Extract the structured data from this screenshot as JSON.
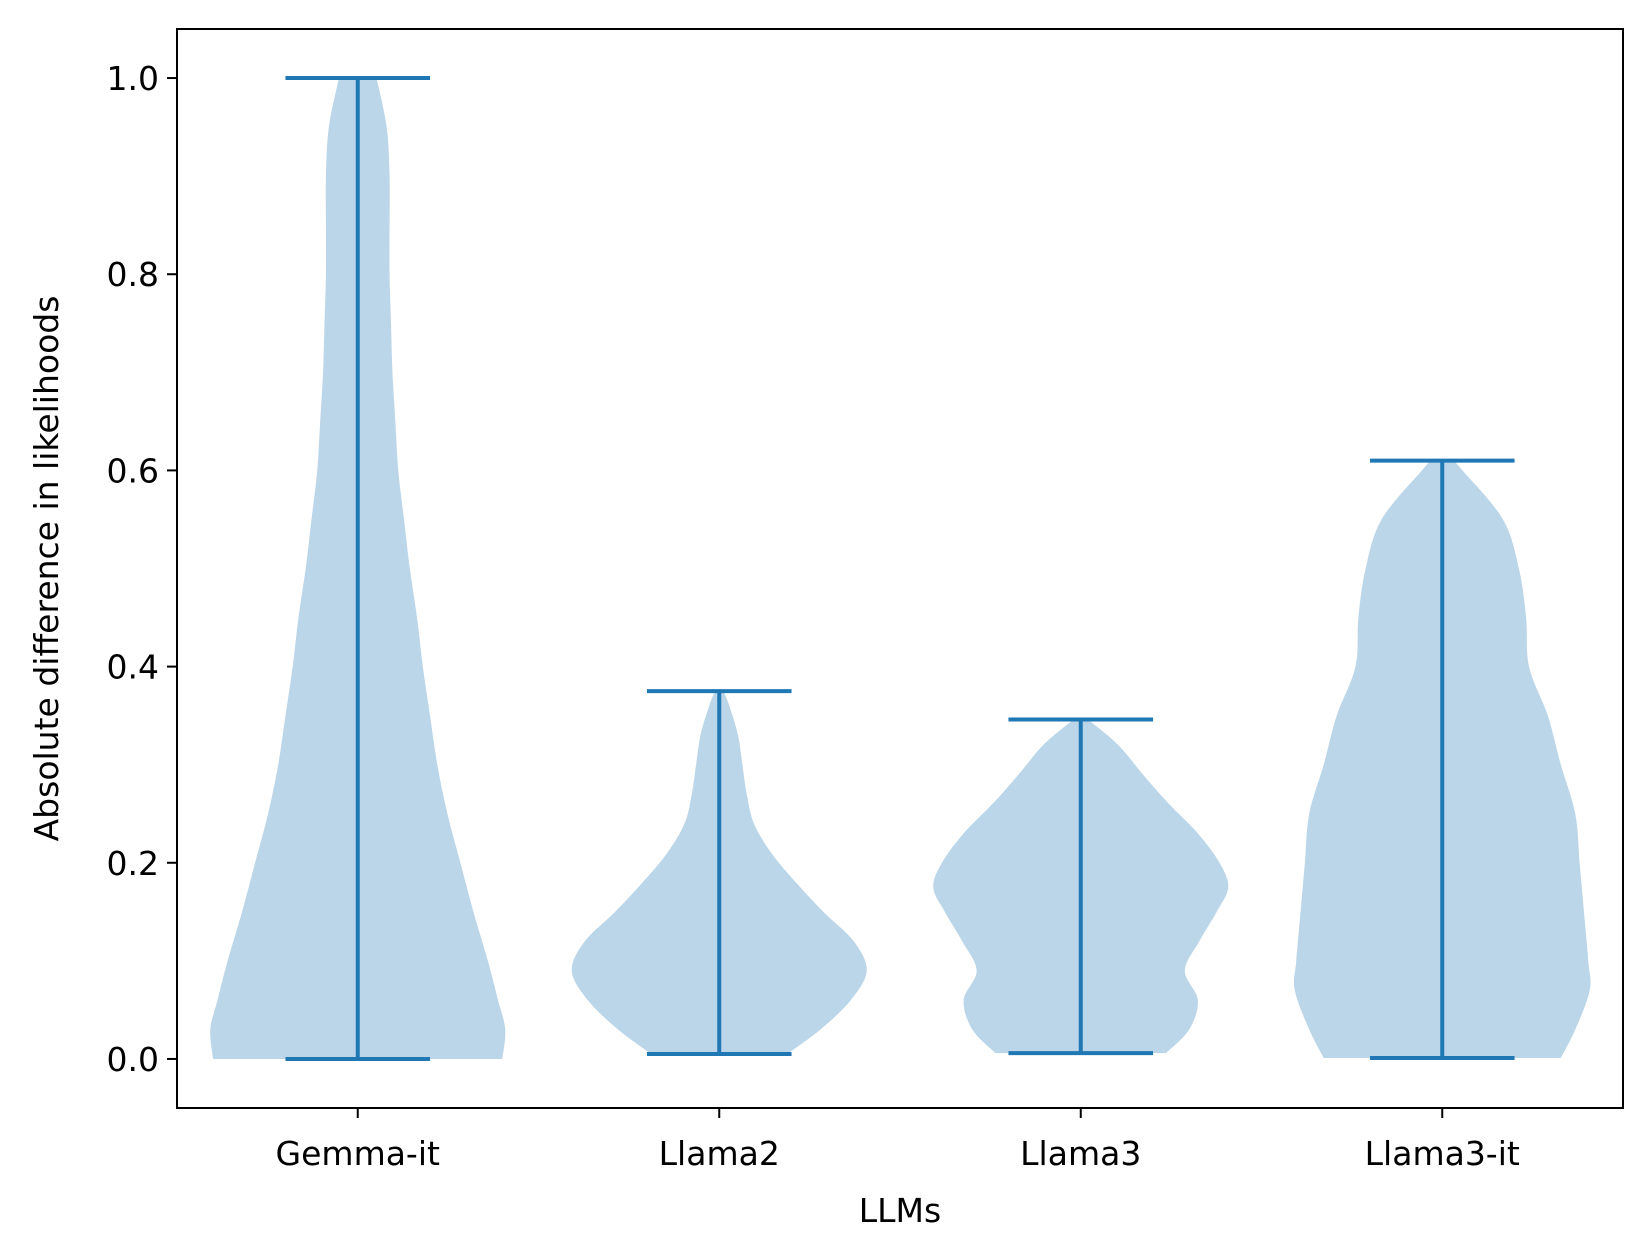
{
  "chart_data": {
    "type": "violin",
    "xlabel": "LLMs",
    "ylabel": "Absolute difference in likelihoods",
    "ylim": [
      -0.05,
      1.05
    ],
    "yticks": [
      "0.0",
      "0.2",
      "0.4",
      "0.6",
      "0.8",
      "1.0"
    ],
    "grid": false,
    "colors": {
      "body": "#bcd6e9",
      "lines": "#1f77b4"
    },
    "categories": [
      "Gemma-it",
      "Llama2",
      "Llama3",
      "Llama3-it"
    ],
    "series": [
      {
        "category": "Gemma-it",
        "min": 0.0,
        "max": 1.0,
        "density": [
          [
            0.0,
            1.0
          ],
          [
            0.03,
            1.02
          ],
          [
            0.06,
            0.97
          ],
          [
            0.1,
            0.9
          ],
          [
            0.15,
            0.8
          ],
          [
            0.2,
            0.71
          ],
          [
            0.25,
            0.62
          ],
          [
            0.3,
            0.55
          ],
          [
            0.35,
            0.5
          ],
          [
            0.4,
            0.45
          ],
          [
            0.45,
            0.41
          ],
          [
            0.5,
            0.36
          ],
          [
            0.55,
            0.32
          ],
          [
            0.6,
            0.28
          ],
          [
            0.65,
            0.26
          ],
          [
            0.7,
            0.24
          ],
          [
            0.75,
            0.23
          ],
          [
            0.8,
            0.22
          ],
          [
            0.85,
            0.22
          ],
          [
            0.9,
            0.22
          ],
          [
            0.95,
            0.2
          ],
          [
            1.0,
            0.13
          ]
        ]
      },
      {
        "category": "Llama2",
        "min": 0.005,
        "max": 0.375,
        "density": [
          [
            0.005,
            0.47
          ],
          [
            0.03,
            0.7
          ],
          [
            0.06,
            0.91
          ],
          [
            0.09,
            1.02
          ],
          [
            0.12,
            0.93
          ],
          [
            0.15,
            0.72
          ],
          [
            0.18,
            0.53
          ],
          [
            0.21,
            0.36
          ],
          [
            0.24,
            0.24
          ],
          [
            0.27,
            0.19
          ],
          [
            0.3,
            0.16
          ],
          [
            0.33,
            0.13
          ],
          [
            0.36,
            0.07
          ],
          [
            0.375,
            0.03
          ]
        ]
      },
      {
        "category": "Llama3",
        "min": 0.006,
        "max": 0.346,
        "density": [
          [
            0.006,
            0.59
          ],
          [
            0.03,
            0.75
          ],
          [
            0.06,
            0.81
          ],
          [
            0.09,
            0.72
          ],
          [
            0.12,
            0.82
          ],
          [
            0.15,
            0.94
          ],
          [
            0.175,
            1.02
          ],
          [
            0.2,
            0.96
          ],
          [
            0.23,
            0.81
          ],
          [
            0.26,
            0.61
          ],
          [
            0.29,
            0.43
          ],
          [
            0.32,
            0.26
          ],
          [
            0.346,
            0.05
          ]
        ]
      },
      {
        "category": "Llama3-it",
        "min": 0.001,
        "max": 0.61,
        "density": [
          [
            0.001,
            0.82
          ],
          [
            0.03,
            0.92
          ],
          [
            0.07,
            1.02
          ],
          [
            0.1,
            1.01
          ],
          [
            0.15,
            0.98
          ],
          [
            0.2,
            0.95
          ],
          [
            0.25,
            0.92
          ],
          [
            0.3,
            0.82
          ],
          [
            0.35,
            0.73
          ],
          [
            0.4,
            0.6
          ],
          [
            0.45,
            0.58
          ],
          [
            0.5,
            0.53
          ],
          [
            0.55,
            0.42
          ],
          [
            0.6,
            0.14
          ],
          [
            0.61,
            0.08
          ]
        ]
      }
    ]
  }
}
